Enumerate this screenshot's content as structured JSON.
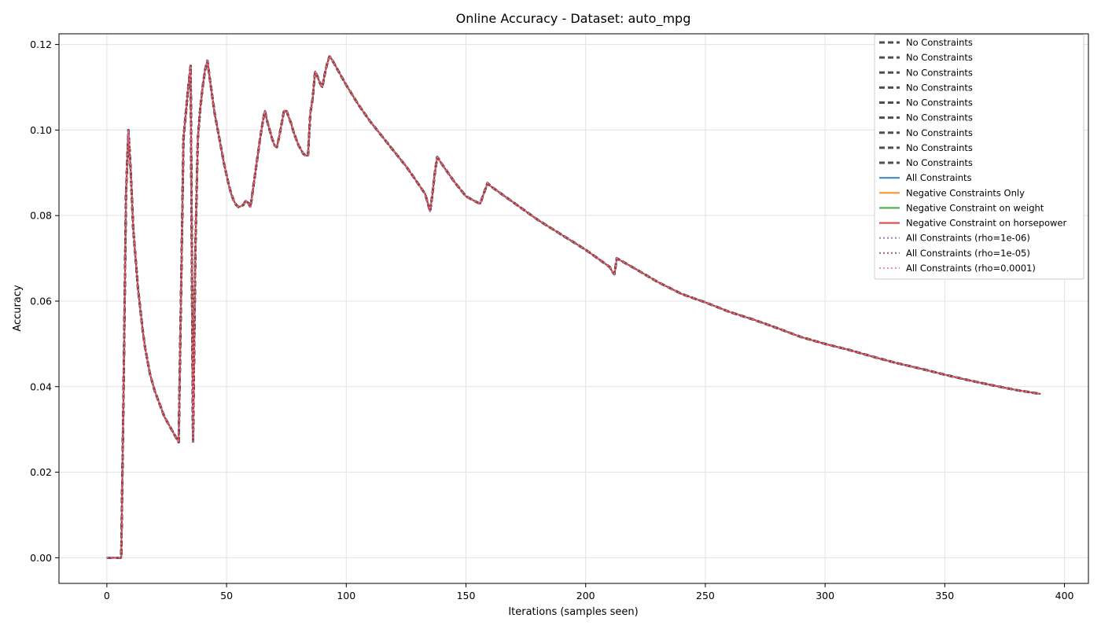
{
  "chart_data": {
    "type": "line",
    "title": "Online Accuracy - Dataset: auto_mpg",
    "xlabel": "Iterations (samples seen)",
    "ylabel": "Accuracy",
    "xlim": [
      -20,
      410
    ],
    "ylim": [
      -0.006,
      0.1225
    ],
    "xticks": [
      0,
      50,
      100,
      150,
      200,
      250,
      300,
      350,
      400
    ],
    "xtick_labels": [
      "0",
      "50",
      "100",
      "150",
      "200",
      "250",
      "300",
      "350",
      "400"
    ],
    "yticks": [
      0.0,
      0.02,
      0.04,
      0.06,
      0.08,
      0.1,
      0.12
    ],
    "ytick_labels": [
      "0.00",
      "0.02",
      "0.04",
      "0.06",
      "0.08",
      "0.10",
      "0.12"
    ],
    "grid": true,
    "legend_position": "top-right",
    "note": "All series overlap (identical trajectories).",
    "x": [
      0,
      1,
      2,
      3,
      4,
      5,
      6,
      7,
      8,
      9,
      10,
      11,
      12,
      13,
      14,
      15,
      16,
      17,
      18,
      19,
      20,
      21,
      22,
      23,
      24,
      25,
      26,
      27,
      28,
      29,
      30,
      31,
      32,
      33,
      34,
      35,
      36,
      37,
      38,
      39,
      40,
      41,
      42,
      43,
      44,
      45,
      46,
      47,
      48,
      49,
      50,
      51,
      52,
      53,
      54,
      55,
      56,
      57,
      58,
      59,
      60,
      61,
      62,
      63,
      64,
      65,
      66,
      67,
      68,
      69,
      70,
      71,
      72,
      73,
      74,
      75,
      76,
      77,
      78,
      79,
      80,
      81,
      82,
      83,
      84,
      85,
      86,
      87,
      88,
      89,
      90,
      91,
      92,
      93,
      94,
      95,
      96,
      97,
      98,
      99,
      100,
      105,
      110,
      115,
      120,
      125,
      130,
      133,
      135,
      136,
      137,
      138,
      140,
      145,
      150,
      155,
      156,
      157,
      158,
      159,
      160,
      170,
      180,
      190,
      200,
      210,
      211,
      212,
      213,
      214,
      220,
      230,
      240,
      250,
      260,
      270,
      280,
      290,
      300,
      310,
      320,
      330,
      340,
      350,
      360,
      370,
      380,
      390
    ],
    "series_values": [
      0.0,
      0.0,
      0.0,
      0.0,
      0.0,
      0.0,
      0.0,
      0.04,
      0.085,
      0.1,
      0.09,
      0.077,
      0.07,
      0.063,
      0.058,
      0.053,
      0.049,
      0.046,
      0.043,
      0.041,
      0.039,
      0.0375,
      0.036,
      0.0345,
      0.033,
      0.032,
      0.031,
      0.03,
      0.029,
      0.028,
      0.027,
      0.062,
      0.098,
      0.104,
      0.11,
      0.115,
      0.0272,
      0.073,
      0.098,
      0.105,
      0.11,
      0.114,
      0.1162,
      0.112,
      0.108,
      0.104,
      0.101,
      0.098,
      0.095,
      0.092,
      0.0895,
      0.087,
      0.085,
      0.0835,
      0.0825,
      0.082,
      0.0822,
      0.0825,
      0.0835,
      0.083,
      0.082,
      0.086,
      0.09,
      0.094,
      0.098,
      0.1015,
      0.1045,
      0.102,
      0.1,
      0.098,
      0.0965,
      0.096,
      0.0985,
      0.1015,
      0.1045,
      0.1045,
      0.103,
      0.1015,
      0.0995,
      0.098,
      0.0965,
      0.0955,
      0.0945,
      0.094,
      0.094,
      0.104,
      0.1075,
      0.1137,
      0.1125,
      0.111,
      0.11,
      0.113,
      0.1155,
      0.1172,
      0.1165,
      0.1155,
      0.1145,
      0.1135,
      0.1125,
      0.1115,
      0.1105,
      0.106,
      0.102,
      0.0985,
      0.095,
      0.0915,
      0.0875,
      0.085,
      0.081,
      0.085,
      0.09,
      0.0937,
      0.092,
      0.088,
      0.0845,
      0.083,
      0.0828,
      0.0845,
      0.086,
      0.0876,
      0.087,
      0.083,
      0.079,
      0.0755,
      0.072,
      0.068,
      0.067,
      0.0663,
      0.07,
      0.0697,
      0.0678,
      0.0645,
      0.0617,
      0.0597,
      0.0575,
      0.0557,
      0.0537,
      0.0516,
      0.05,
      0.0486,
      0.047,
      0.0455,
      0.0442,
      0.0428,
      0.0415,
      0.0403,
      0.0392,
      0.0383
    ],
    "series": [
      {
        "name": "No Constraints",
        "color": "#444444",
        "style": "dashed"
      },
      {
        "name": "No Constraints",
        "color": "#444444",
        "style": "dashed"
      },
      {
        "name": "No Constraints",
        "color": "#444444",
        "style": "dashed"
      },
      {
        "name": "No Constraints",
        "color": "#444444",
        "style": "dashed"
      },
      {
        "name": "No Constraints",
        "color": "#444444",
        "style": "dashed"
      },
      {
        "name": "No Constraints",
        "color": "#444444",
        "style": "dashed"
      },
      {
        "name": "No Constraints",
        "color": "#444444",
        "style": "dashed"
      },
      {
        "name": "No Constraints",
        "color": "#444444",
        "style": "dashed"
      },
      {
        "name": "No Constraints",
        "color": "#444444",
        "style": "dashed"
      },
      {
        "name": "All Constraints",
        "color": "#1f77b4",
        "style": "solid"
      },
      {
        "name": "Negative Constraints Only",
        "color": "#ff7f0e",
        "style": "solid"
      },
      {
        "name": "Negative Constraint on weight",
        "color": "#2ca02c",
        "style": "solid"
      },
      {
        "name": "Negative Constraint on horsepower",
        "color": "#d62728",
        "style": "solid"
      },
      {
        "name": "All Constraints (rho=1e-06)",
        "color": "#9467bd",
        "style": "dotted"
      },
      {
        "name": "All Constraints (rho=1e-05)",
        "color": "#8c564b",
        "style": "dotted"
      },
      {
        "name": "All Constraints (rho=0.0001)",
        "color": "#e377c2",
        "style": "dotted"
      }
    ]
  }
}
